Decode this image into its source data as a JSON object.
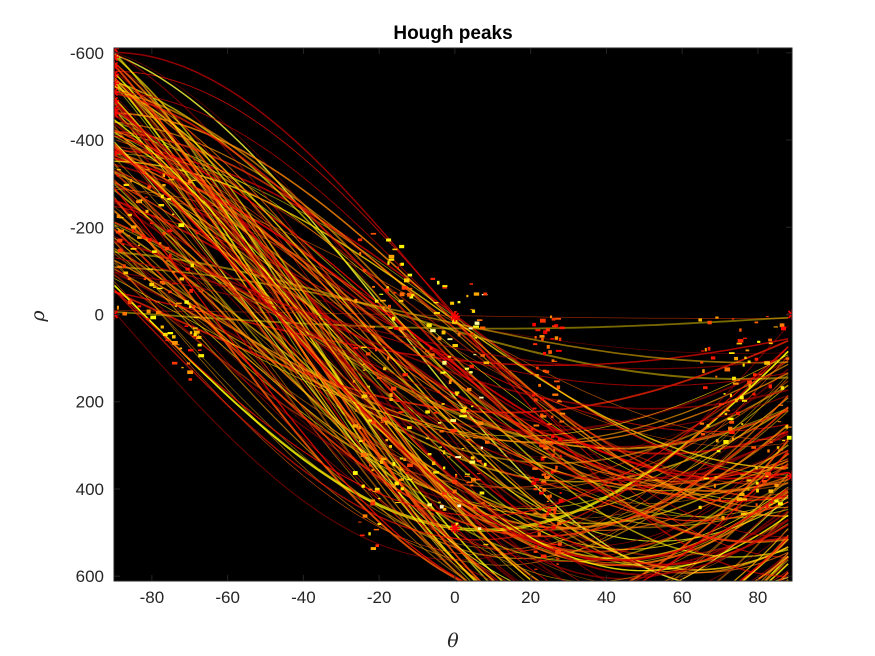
{
  "chart_data": {
    "type": "heatmap",
    "title": "Hough peaks",
    "xlabel": "θ",
    "ylabel": "ρ",
    "xlim": [
      -90,
      89
    ],
    "ylim": [
      -611,
      611
    ],
    "y_axis_direction": "reversed",
    "x_ticks": [
      -80,
      -60,
      -40,
      -20,
      0,
      20,
      40,
      60,
      80
    ],
    "x_tick_labels": [
      "-80",
      "-60",
      "-40",
      "-20",
      "0",
      "20",
      "40",
      "60",
      "80"
    ],
    "y_ticks": [
      -600,
      -400,
      -200,
      0,
      200,
      400,
      600
    ],
    "y_tick_labels": [
      "-600",
      "-400",
      "-200",
      "0",
      "200",
      "400",
      "600"
    ],
    "colormap": "hot",
    "background_color": "#000000",
    "peak_marker": "*",
    "peak_color": "#ff0000",
    "peaks": [
      {
        "theta": -90,
        "rho": -610
      },
      {
        "theta": -90,
        "rho": -590
      },
      {
        "theta": -90,
        "rho": -570
      },
      {
        "theta": -90,
        "rho": -550
      },
      {
        "theta": -90,
        "rho": -530
      },
      {
        "theta": -90,
        "rho": -510
      },
      {
        "theta": -90,
        "rho": -490
      },
      {
        "theta": -90,
        "rho": -470
      },
      {
        "theta": -90,
        "rho": -460
      },
      {
        "theta": -90,
        "rho": -370
      },
      {
        "theta": -90,
        "rho": 0
      },
      {
        "theta": 0,
        "rho": 5
      },
      {
        "theta": 0,
        "rho": 490
      },
      {
        "theta": 89,
        "rho": 0
      },
      {
        "theta": 89,
        "rho": 370
      }
    ],
    "grid": false,
    "box": true
  }
}
